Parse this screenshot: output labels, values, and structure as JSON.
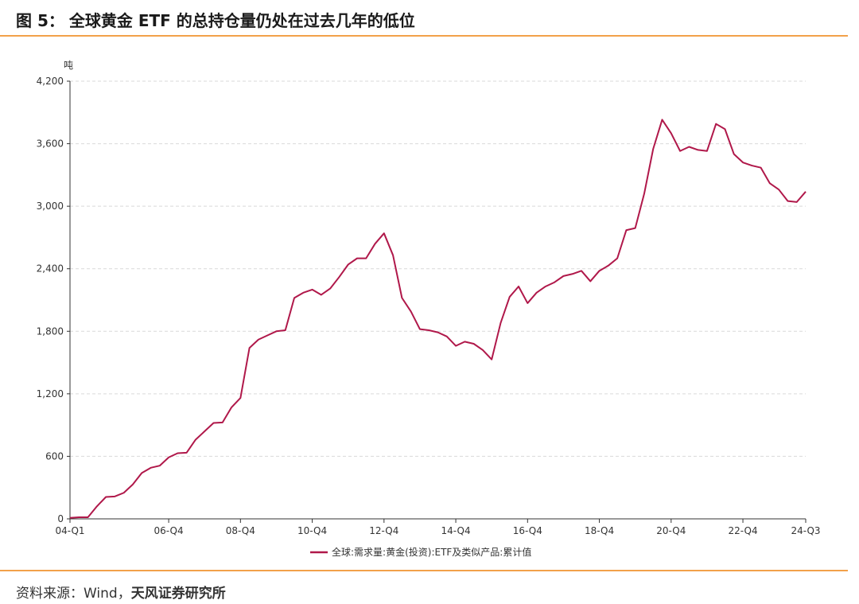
{
  "header": {
    "figure_label": "图 5：",
    "title": "全球黄金 ETF 的总持仓量仍处在过去几年的低位"
  },
  "footer": {
    "source_label": "资料来源：",
    "source_text": "Wind，",
    "organization": "天风证券研究所"
  },
  "colors": {
    "series_line": "#b0184a",
    "accent_rule": "#f2a14a",
    "grid": "#d9d9d9"
  },
  "chart_data": {
    "type": "line",
    "title": "",
    "ylabel": "吨",
    "xlabel": "",
    "ylim": [
      0,
      4200
    ],
    "yticks": [
      0,
      600,
      1200,
      1800,
      2400,
      3000,
      3600,
      4200
    ],
    "ytick_labels": [
      "0",
      "600",
      "1,200",
      "1,800",
      "2,400",
      "3,000",
      "3,600",
      "4,200"
    ],
    "xtick_labels": [
      "04-Q1",
      "06-Q4",
      "08-Q4",
      "10-Q4",
      "12-Q4",
      "14-Q4",
      "16-Q4",
      "18-Q4",
      "20-Q4",
      "22-Q4",
      "24-Q3"
    ],
    "xtick_indexes": [
      0,
      11,
      19,
      27,
      35,
      43,
      51,
      59,
      67,
      75,
      82
    ],
    "grid": "horizontal dashed",
    "legend_position": "bottom-center",
    "series": [
      {
        "name": "全球:需求量:黄金(投资):ETF及类似产品:累计值",
        "x": [
          "04-Q1",
          "04-Q2",
          "04-Q3",
          "04-Q4",
          "05-Q1",
          "05-Q2",
          "05-Q3",
          "05-Q4",
          "06-Q1",
          "06-Q2",
          "06-Q3",
          "06-Q4",
          "07-Q1",
          "07-Q2",
          "07-Q3",
          "07-Q4",
          "08-Q1",
          "08-Q2",
          "08-Q3",
          "08-Q4",
          "09-Q1",
          "09-Q2",
          "09-Q3",
          "09-Q4",
          "10-Q1",
          "10-Q2",
          "10-Q3",
          "10-Q4",
          "11-Q1",
          "11-Q2",
          "11-Q3",
          "11-Q4",
          "12-Q1",
          "12-Q2",
          "12-Q3",
          "12-Q4",
          "13-Q1",
          "13-Q2",
          "13-Q3",
          "13-Q4",
          "14-Q1",
          "14-Q2",
          "14-Q3",
          "14-Q4",
          "15-Q1",
          "15-Q2",
          "15-Q3",
          "15-Q4",
          "16-Q1",
          "16-Q2",
          "16-Q3",
          "16-Q4",
          "17-Q1",
          "17-Q2",
          "17-Q3",
          "17-Q4",
          "18-Q1",
          "18-Q2",
          "18-Q3",
          "18-Q4",
          "19-Q1",
          "19-Q2",
          "19-Q3",
          "19-Q4",
          "20-Q1",
          "20-Q2",
          "20-Q3",
          "20-Q4",
          "21-Q1",
          "21-Q2",
          "21-Q3",
          "21-Q4",
          "22-Q1",
          "22-Q2",
          "22-Q3",
          "22-Q4",
          "23-Q1",
          "23-Q2",
          "23-Q3",
          "23-Q4",
          "24-Q1",
          "24-Q2",
          "24-Q3"
        ],
        "values": [
          10,
          15,
          15,
          120,
          210,
          215,
          250,
          330,
          440,
          490,
          510,
          590,
          630,
          635,
          760,
          840,
          920,
          925,
          1070,
          1160,
          1640,
          1720,
          1760,
          1800,
          1810,
          2120,
          2170,
          2200,
          2150,
          2210,
          2320,
          2440,
          2500,
          2500,
          2640,
          2740,
          2530,
          2120,
          1990,
          1820,
          1810,
          1790,
          1750,
          1660,
          1700,
          1680,
          1620,
          1530,
          1880,
          2130,
          2230,
          2070,
          2170,
          2230,
          2270,
          2330,
          2350,
          2380,
          2280,
          2380,
          2430,
          2500,
          2770,
          2790,
          3120,
          3550,
          3830,
          3700,
          3530,
          3570,
          3540,
          3530,
          3790,
          3740,
          3500,
          3420,
          3390,
          3370,
          3220,
          3160,
          3050,
          3040,
          3140
        ]
      }
    ]
  }
}
